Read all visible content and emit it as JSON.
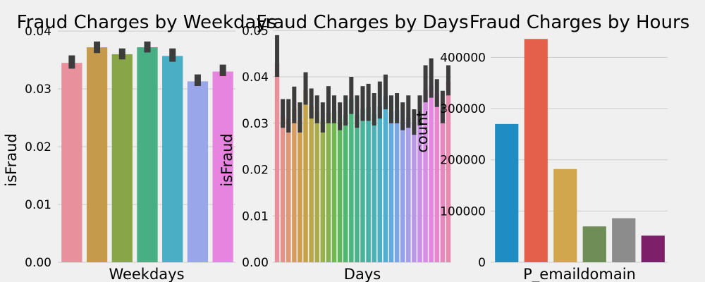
{
  "chart_data": [
    {
      "type": "bar",
      "title": "Fraud Charges by Weekdays",
      "xlabel": "Weekdays",
      "ylabel": "isFraud",
      "ylim": [
        0,
        0.0405
      ],
      "yticks": [
        0.0,
        0.01,
        0.02,
        0.03,
        0.04
      ],
      "ytick_labels": [
        "0.00",
        "0.01",
        "0.02",
        "0.03",
        "0.04"
      ],
      "values": [
        0.0345,
        0.0372,
        0.036,
        0.0372,
        0.0357,
        0.0313,
        0.033
      ],
      "error_low": [
        0.0335,
        0.0362,
        0.0351,
        0.0363,
        0.0347,
        0.0305,
        0.0322
      ],
      "error_high": [
        0.0358,
        0.0382,
        0.037,
        0.0382,
        0.037,
        0.0325,
        0.0342
      ],
      "colors": [
        "#e8909b",
        "#c59a4a",
        "#88a647",
        "#48ae84",
        "#4aaec4",
        "#9aa6ea",
        "#e784e0"
      ],
      "grid": true
    },
    {
      "type": "bar",
      "title": "Fraud Charges by Days",
      "xlabel": "Days",
      "ylabel": "isFraud",
      "ylim": [
        0,
        0.0505
      ],
      "yticks": [
        0.0,
        0.01,
        0.02,
        0.03,
        0.04,
        0.05
      ],
      "ytick_labels": [
        "0.00",
        "0.01",
        "0.02",
        "0.03",
        "0.04",
        "0.05"
      ],
      "values": [
        0.043,
        0.0316,
        0.0309,
        0.0331,
        0.0306,
        0.037,
        0.0336,
        0.0325,
        0.0306,
        0.0322,
        0.0325,
        0.0308,
        0.0318,
        0.0352,
        0.0318,
        0.0332,
        0.0334,
        0.032,
        0.0336,
        0.0358,
        0.0324,
        0.0328,
        0.0308,
        0.0312,
        0.0298,
        0.0318,
        0.0372,
        0.0382,
        0.0364,
        0.033,
        0.039
      ],
      "error_low": [
        0.04,
        0.029,
        0.028,
        0.03,
        0.028,
        0.034,
        0.031,
        0.03,
        0.028,
        0.03,
        0.03,
        0.0285,
        0.0295,
        0.032,
        0.029,
        0.0305,
        0.0305,
        0.0295,
        0.031,
        0.033,
        0.03,
        0.03,
        0.0285,
        0.029,
        0.0275,
        0.0295,
        0.0345,
        0.0355,
        0.0335,
        0.03,
        0.036
      ],
      "error_high": [
        0.049,
        0.0352,
        0.0352,
        0.0379,
        0.0345,
        0.041,
        0.0375,
        0.036,
        0.0345,
        0.038,
        0.036,
        0.0345,
        0.036,
        0.04,
        0.036,
        0.038,
        0.0385,
        0.0365,
        0.039,
        0.0405,
        0.036,
        0.0365,
        0.0345,
        0.036,
        0.033,
        0.036,
        0.0425,
        0.044,
        0.0395,
        0.037,
        0.0425
      ],
      "colors": [
        "#e8909b",
        "#e2938b",
        "#dd9877",
        "#d69c60",
        "#cf9f4c",
        "#c5a347",
        "#b9a748",
        "#aaac4a",
        "#99b04b",
        "#86b34c",
        "#71b84e",
        "#5ab95b",
        "#4db96e",
        "#4ab77e",
        "#49b48c",
        "#48b39a",
        "#48b1a7",
        "#4ab2b5",
        "#4cb0c3",
        "#4fafd2",
        "#60abde",
        "#7ba6e4",
        "#95a2ea",
        "#a99dea",
        "#bb97ea",
        "#ca90e8",
        "#d98be5",
        "#e685e0",
        "#ea86d0",
        "#e988c0",
        "#e98bb0"
      ],
      "grid": true
    },
    {
      "type": "bar",
      "title": "Fraud Charges by Hours",
      "xlabel": "P_emaildomain",
      "ylabel": "count",
      "ylim": [
        0,
        457000
      ],
      "yticks": [
        0,
        100000,
        200000,
        300000,
        400000
      ],
      "ytick_labels": [
        "0",
        "100000",
        "200000",
        "300000",
        "400000"
      ],
      "values": [
        270000,
        436000,
        182000,
        70000,
        86000,
        52000
      ],
      "colors": [
        "#1f8cc4",
        "#e5604a",
        "#d1a64d",
        "#6e8d57",
        "#8c8c8c",
        "#7d2069"
      ],
      "grid": true
    }
  ]
}
